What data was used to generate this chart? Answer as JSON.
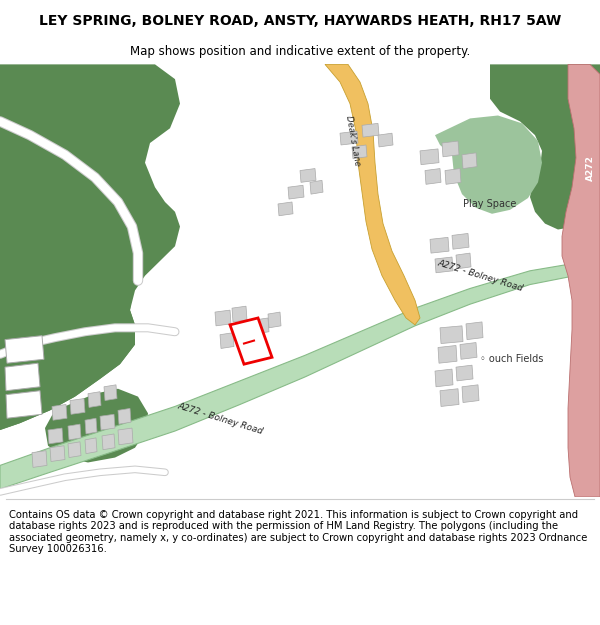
{
  "title": "LEY SPRING, BOLNEY ROAD, ANSTY, HAYWARDS HEATH, RH17 5AW",
  "subtitle": "Map shows position and indicative extent of the property.",
  "footer": "Contains OS data © Crown copyright and database right 2021. This information is subject to Crown copyright and database rights 2023 and is reproduced with the permission of HM Land Registry. The polygons (including the associated geometry, namely x, y co-ordinates) are subject to Crown copyright and database rights 2023 Ordnance Survey 100026316.",
  "bg_color": "#ffffff",
  "map_bg": "#ffffff",
  "green_dark": "#5a8a52",
  "green_light_road": "#b8ddb8",
  "green_road_edge": "#88bb88",
  "building_color": "#d0d0d0",
  "building_outline": "#aaaaaa",
  "road_yellow": "#f0c060",
  "road_yellow_edge": "#c8a030",
  "red_outline": "#ee0000",
  "pink_road": "#dda0a0",
  "pink_road_edge": "#bb7070",
  "white_road": "#f0f0f0",
  "light_green_patch": "#9cc49c",
  "title_fontsize": 10,
  "subtitle_fontsize": 8.5,
  "footer_fontsize": 7.2
}
